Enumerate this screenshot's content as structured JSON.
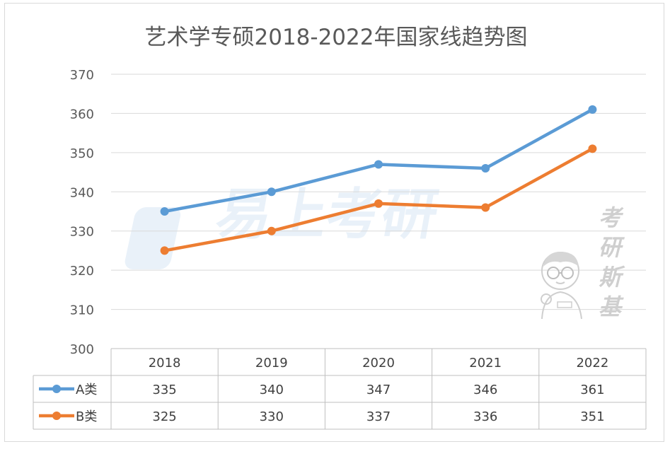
{
  "chart_data": {
    "type": "line",
    "title": "艺术学专硕2018-2022年国家线趋势图",
    "categories": [
      "2018",
      "2019",
      "2020",
      "2021",
      "2022"
    ],
    "ylim": [
      300,
      370
    ],
    "yticks": [
      "370",
      "360",
      "350",
      "340",
      "330",
      "320",
      "310",
      "300"
    ],
    "grid": true,
    "legend": "data-table",
    "series": [
      {
        "name": "A类",
        "color": "#5b9bd5",
        "values": [
          335,
          340,
          347,
          346,
          361
        ],
        "labels": [
          "335",
          "340",
          "347",
          "346",
          "361"
        ]
      },
      {
        "name": "B类",
        "color": "#ed7d31",
        "values": [
          325,
          330,
          337,
          336,
          351
        ],
        "labels": [
          "325",
          "330",
          "337",
          "336",
          "351"
        ]
      }
    ]
  },
  "watermark": {
    "logo_text": "易上考研",
    "brand_chars": [
      "考",
      "研",
      "斯",
      "基"
    ]
  }
}
